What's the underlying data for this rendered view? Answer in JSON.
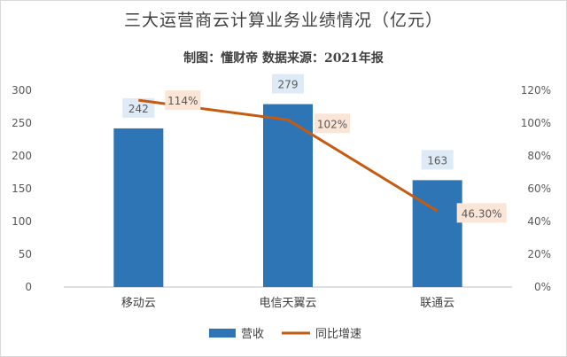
{
  "chart_data": {
    "type": "bar",
    "title": "三大运营商云计算业务业绩情况（亿元）",
    "subtitle": "制图：懂财帝   数据来源：2021年报",
    "categories": [
      "移动云",
      "电信天翼云",
      "联通云"
    ],
    "series": [
      {
        "name": "营收",
        "type": "bar",
        "axis": "left",
        "values": [
          242,
          279,
          163
        ],
        "labels": [
          "242",
          "279",
          "163"
        ],
        "color": "#2e75b6"
      },
      {
        "name": "同比增速",
        "type": "line",
        "axis": "right",
        "values": [
          114,
          102,
          46.3
        ],
        "labels": [
          "114%",
          "102%",
          "46.30%"
        ],
        "color": "#c55a11"
      }
    ],
    "y_left": {
      "min": 0,
      "max": 300,
      "ticks": [
        "0",
        "50",
        "100",
        "150",
        "200",
        "250",
        "300"
      ]
    },
    "y_right": {
      "min": 0,
      "max": 120,
      "ticks": [
        "0%",
        "20%",
        "40%",
        "60%",
        "80%",
        "100%",
        "120%"
      ]
    },
    "grid": false,
    "legend": "bottom",
    "colors": {
      "bar_label_bg": "#deebf7",
      "line_label_bg": "#fbe5d6",
      "axis": "#bfbfbf"
    }
  }
}
